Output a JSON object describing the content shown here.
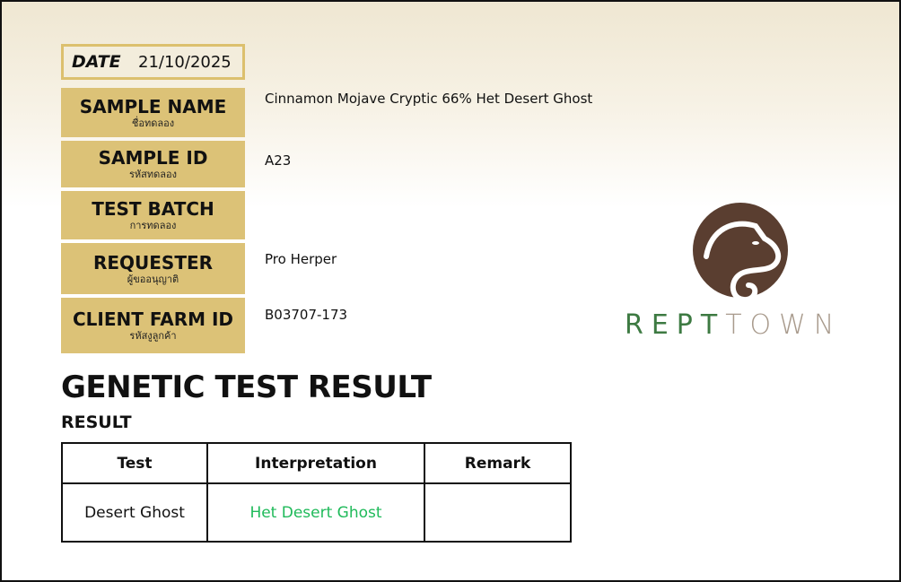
{
  "date": {
    "label": "DATE",
    "value": "21/10/2025"
  },
  "fields": [
    {
      "label": "SAMPLE NAME",
      "label_th": "ชื่อทดลอง",
      "value": "Cinnamon Mojave Cryptic 66% Het Desert Ghost"
    },
    {
      "label": "SAMPLE ID",
      "label_th": "รหัสทดลอง",
      "value": "A23"
    },
    {
      "label": "TEST BATCH",
      "label_th": "การทดลอง",
      "value": ""
    },
    {
      "label": "REQUESTER",
      "label_th": "ผู้ขออนุญาติ",
      "value": "Pro Herper"
    },
    {
      "label": "CLIENT FARM ID",
      "label_th": "รหัสงูลูกค้า",
      "value": "B03707-173"
    }
  ],
  "title": "GENETIC TEST RESULT",
  "subtitle": "RESULT",
  "table": {
    "headers": [
      "Test",
      "Interpretation",
      "Remark"
    ],
    "rows": [
      {
        "test": "Desert Ghost",
        "interpretation": "Het Desert Ghost",
        "remark": ""
      }
    ]
  },
  "logo": {
    "text_left": "REPT",
    "text_right": "TOWN"
  },
  "colors": {
    "label_bg": "#dcc277",
    "interpretation": "#1fba5a",
    "logo_brown": "#5a3e30",
    "logo_green": "#3d7a42",
    "logo_grey": "#a89a8c"
  }
}
